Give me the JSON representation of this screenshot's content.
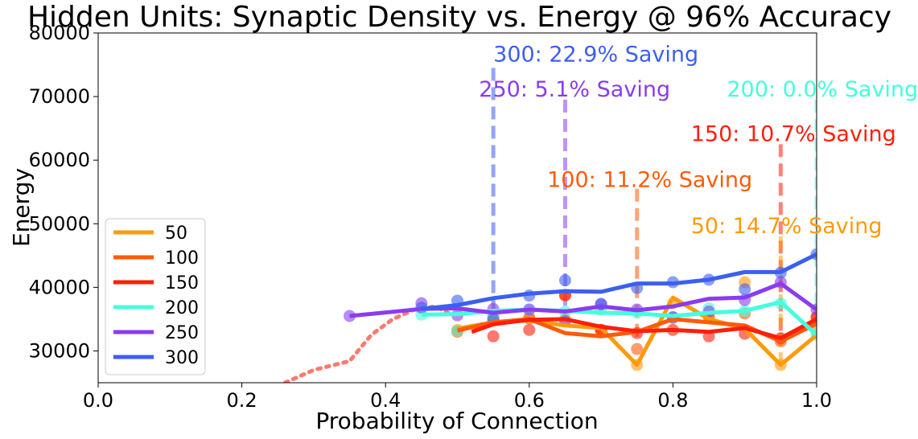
{
  "chart_data": {
    "type": "line",
    "title": "Hidden Units: Synaptic Density vs. Energy @ 96% Accuracy",
    "xlabel": "Probability of Connection",
    "ylabel": "Energy",
    "xlim": [
      0.0,
      1.0
    ],
    "ylim": [
      25000,
      80000
    ],
    "xticks": [
      "0.0",
      "0.2",
      "0.4",
      "0.6",
      "0.8",
      "1.0"
    ],
    "yticks": [
      "30000",
      "40000",
      "50000",
      "60000",
      "70000",
      "80000"
    ],
    "legend_position": "lower-left",
    "series": [
      {
        "name": "50",
        "color": "#ff9a0a",
        "line": [
          [
            0.5,
            33500
          ],
          [
            0.55,
            34500
          ],
          [
            0.6,
            34800
          ],
          [
            0.65,
            34000
          ],
          [
            0.7,
            33600
          ],
          [
            0.75,
            27800
          ],
          [
            0.8,
            38400
          ],
          [
            0.85,
            35000
          ],
          [
            0.9,
            33500
          ],
          [
            0.95,
            27800
          ],
          [
            1.0,
            32500
          ]
        ],
        "points": [
          [
            0.5,
            33300
          ],
          [
            0.55,
            34800
          ],
          [
            0.6,
            35300
          ],
          [
            0.65,
            35000
          ],
          [
            0.7,
            33200
          ],
          [
            0.75,
            27800
          ],
          [
            0.8,
            37500
          ],
          [
            0.85,
            35300
          ],
          [
            0.9,
            40800
          ],
          [
            0.95,
            27800
          ],
          [
            1.0,
            33000
          ]
        ]
      },
      {
        "name": "100",
        "color": "#ff5a0a",
        "line": [
          [
            0.5,
            33200
          ],
          [
            0.55,
            34500
          ],
          [
            0.6,
            35000
          ],
          [
            0.65,
            32800
          ],
          [
            0.7,
            32300
          ],
          [
            0.75,
            33000
          ],
          [
            0.8,
            35000
          ],
          [
            0.85,
            34500
          ],
          [
            0.9,
            34000
          ],
          [
            0.95,
            31500
          ],
          [
            1.0,
            34300
          ]
        ],
        "points": [
          [
            0.5,
            33000
          ],
          [
            0.55,
            34800
          ],
          [
            0.6,
            35100
          ],
          [
            0.65,
            38700
          ],
          [
            0.7,
            33300
          ],
          [
            0.75,
            30300
          ],
          [
            0.8,
            35200
          ],
          [
            0.85,
            35500
          ],
          [
            0.9,
            35900
          ],
          [
            0.95,
            31500
          ],
          [
            1.0,
            35300
          ]
        ]
      },
      {
        "name": "150",
        "color": "#ff1e0a",
        "line": [
          [
            0.52,
            33000
          ],
          [
            0.55,
            34200
          ],
          [
            0.6,
            34900
          ],
          [
            0.65,
            35000
          ],
          [
            0.7,
            33800
          ],
          [
            0.75,
            33100
          ],
          [
            0.8,
            33300
          ],
          [
            0.85,
            33000
          ],
          [
            0.9,
            33600
          ],
          [
            0.95,
            32000
          ],
          [
            1.0,
            35000
          ]
        ],
        "points": [
          [
            0.55,
            32300
          ],
          [
            0.6,
            33300
          ],
          [
            0.65,
            38800
          ],
          [
            0.7,
            33300
          ],
          [
            0.75,
            32800
          ],
          [
            0.8,
            33300
          ],
          [
            0.85,
            32300
          ],
          [
            0.9,
            32700
          ],
          [
            0.95,
            32000
          ],
          [
            1.0,
            35300
          ]
        ]
      },
      {
        "name": "200",
        "color": "#44ffdd",
        "line": [
          [
            0.45,
            35700
          ],
          [
            0.5,
            35800
          ],
          [
            0.55,
            36300
          ],
          [
            0.6,
            36500
          ],
          [
            0.65,
            36300
          ],
          [
            0.7,
            36000
          ],
          [
            0.75,
            35900
          ],
          [
            0.8,
            35500
          ],
          [
            0.85,
            36000
          ],
          [
            0.9,
            36300
          ],
          [
            0.95,
            37700
          ],
          [
            1.0,
            32500
          ]
        ],
        "points": [
          [
            0.45,
            35700
          ],
          [
            0.5,
            33200
          ],
          [
            0.55,
            35500
          ],
          [
            0.6,
            36500
          ],
          [
            0.65,
            36200
          ],
          [
            0.7,
            36500
          ],
          [
            0.75,
            36000
          ],
          [
            0.8,
            35300
          ],
          [
            0.85,
            36700
          ],
          [
            0.9,
            36300
          ],
          [
            0.95,
            37500
          ],
          [
            1.0,
            32500
          ]
        ]
      },
      {
        "name": "250",
        "color": "#8a3cf0",
        "line": [
          [
            0.35,
            35500
          ],
          [
            0.45,
            36600
          ],
          [
            0.5,
            36700
          ],
          [
            0.55,
            36000
          ],
          [
            0.6,
            36500
          ],
          [
            0.65,
            36200
          ],
          [
            0.7,
            37000
          ],
          [
            0.75,
            36400
          ],
          [
            0.8,
            37000
          ],
          [
            0.85,
            38200
          ],
          [
            0.9,
            38400
          ],
          [
            0.95,
            40600
          ],
          [
            1.0,
            36500
          ]
        ],
        "points": [
          [
            0.35,
            35500
          ],
          [
            0.45,
            37500
          ],
          [
            0.5,
            35600
          ],
          [
            0.55,
            36600
          ],
          [
            0.6,
            36500
          ],
          [
            0.65,
            34700
          ],
          [
            0.7,
            37400
          ],
          [
            0.75,
            36500
          ],
          [
            0.8,
            35300
          ],
          [
            0.85,
            36200
          ],
          [
            0.9,
            38000
          ],
          [
            0.95,
            40800
          ],
          [
            1.0,
            36500
          ]
        ]
      },
      {
        "name": "300",
        "color": "#3c5ff0",
        "line": [
          [
            0.45,
            36600
          ],
          [
            0.5,
            37200
          ],
          [
            0.55,
            38300
          ],
          [
            0.6,
            39000
          ],
          [
            0.65,
            39400
          ],
          [
            0.7,
            39300
          ],
          [
            0.75,
            40600
          ],
          [
            0.8,
            40600
          ],
          [
            0.85,
            41200
          ],
          [
            0.9,
            42400
          ],
          [
            0.95,
            42400
          ],
          [
            1.0,
            45200
          ]
        ],
        "points": [
          [
            0.45,
            36800
          ],
          [
            0.5,
            37900
          ],
          [
            0.55,
            35100
          ],
          [
            0.6,
            38700
          ],
          [
            0.65,
            41100
          ],
          [
            0.7,
            37300
          ],
          [
            0.75,
            39900
          ],
          [
            0.8,
            40800
          ],
          [
            0.85,
            41200
          ],
          [
            0.9,
            39700
          ],
          [
            0.95,
            42300
          ],
          [
            1.0,
            45200
          ]
        ]
      }
    ],
    "reference_curve": {
      "color": "#ff7a6e",
      "style": "dotted",
      "points": [
        [
          0.26,
          25000
        ],
        [
          0.3,
          27000
        ],
        [
          0.35,
          28400
        ],
        [
          0.38,
          32500
        ],
        [
          0.41,
          35000
        ],
        [
          0.44,
          36500
        ],
        [
          0.47,
          37000
        ],
        [
          0.49,
          35800
        ]
      ]
    },
    "annotations": [
      {
        "text": "300: 22.9% Saving",
        "color": "#3c5ff0",
        "x": 0.55,
        "y": 75500,
        "line_x": 0.55,
        "line_top": 74500,
        "line_bottom": 35100
      },
      {
        "text": "250: 5.1% Saving",
        "color": "#8a3cf0",
        "x": 0.53,
        "y": 70000,
        "line_x": 0.65,
        "line_top": 69500,
        "line_bottom": 35000
      },
      {
        "text": "200: 0.0% Saving",
        "color": "#44ffdd",
        "x": 0.875,
        "y": 70000,
        "line_x": 1.0,
        "line_top": 69500,
        "line_bottom": 33000
      },
      {
        "text": "150: 10.7% Saving",
        "color": "#ff1e0a",
        "x": 0.825,
        "y": 63000,
        "line_x": 0.95,
        "line_top": 62500,
        "line_bottom": 32000
      },
      {
        "text": "100: 11.2% Saving",
        "color": "#ff5a0a",
        "x": 0.625,
        "y": 55800,
        "line_x": 0.75,
        "line_top": 55500,
        "line_bottom": 31500
      },
      {
        "text": "50: 14.7% Saving",
        "color": "#ff9a0a",
        "x": 0.825,
        "y": 48500,
        "line_x": 0.95,
        "line_top": 48000,
        "line_bottom": 28000
      }
    ]
  }
}
